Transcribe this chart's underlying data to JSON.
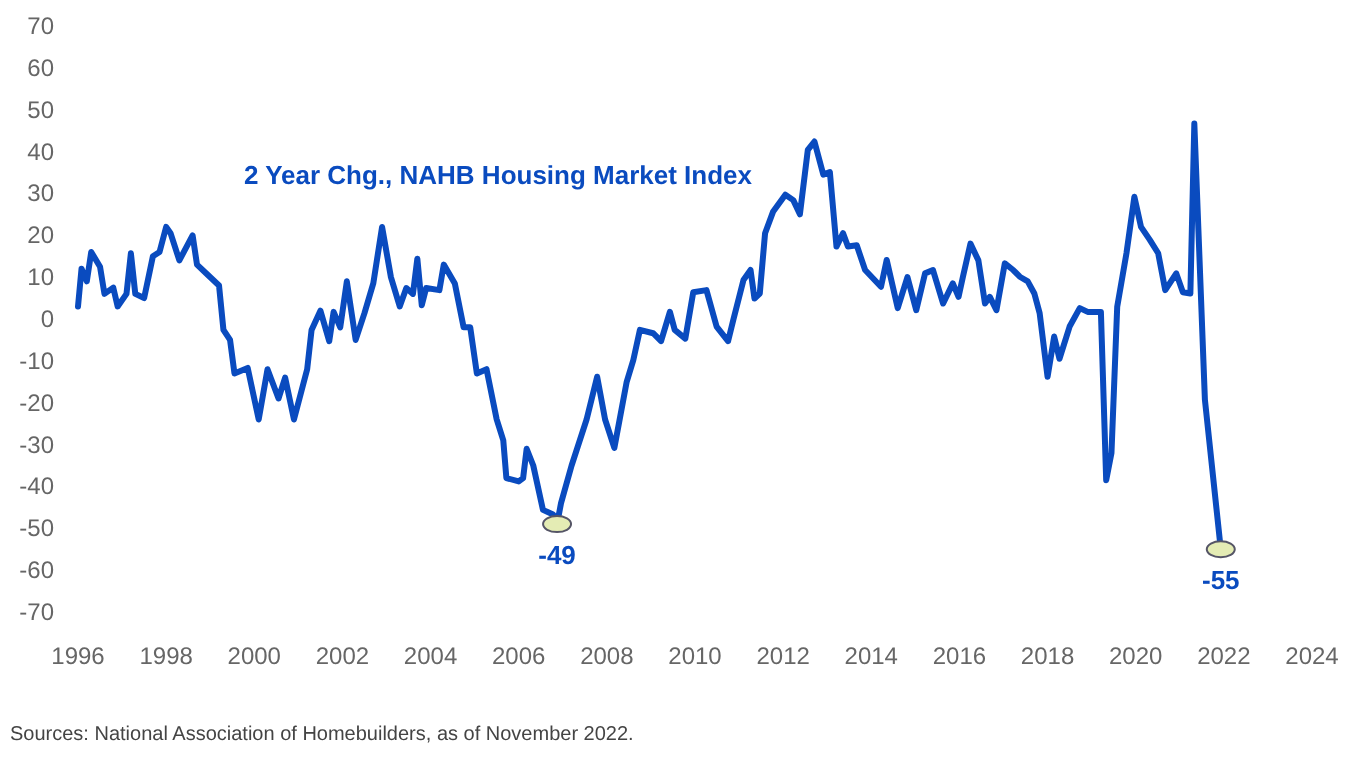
{
  "chart_data": {
    "type": "line",
    "title": "2 Year Chg., NAHB Housing Market Index",
    "xlim": [
      1996,
      2024
    ],
    "ylim": [
      -70,
      70
    ],
    "xticks": [
      1996,
      1998,
      2000,
      2002,
      2004,
      2006,
      2008,
      2010,
      2012,
      2014,
      2016,
      2018,
      2020,
      2022,
      2024
    ],
    "yticks": [
      -70,
      -60,
      -50,
      -40,
      -30,
      -20,
      -10,
      0,
      10,
      20,
      30,
      40,
      50,
      60,
      70
    ],
    "grid": false,
    "marker": "none",
    "line_style": "solid",
    "series": [
      {
        "color": "#0a4bbf",
        "x": [
          1996.0,
          1996.08,
          1996.2,
          1996.3,
          1996.5,
          1996.6,
          1996.8,
          1996.9,
          1997.1,
          1997.2,
          1997.3,
          1997.5,
          1997.7,
          1997.85,
          1998.0,
          1998.1,
          1998.3,
          1998.6,
          1998.7,
          1998.9,
          1999.2,
          1999.3,
          1999.45,
          1999.55,
          1999.85,
          2000.1,
          2000.3,
          2000.55,
          2000.7,
          2000.9,
          2001.2,
          2001.3,
          2001.5,
          2001.7,
          2001.8,
          2001.95,
          2002.1,
          2002.3,
          2002.5,
          2002.7,
          2002.9,
          2003.1,
          2003.3,
          2003.45,
          2003.6,
          2003.7,
          2003.8,
          2003.9,
          2004.2,
          2004.3,
          2004.55,
          2004.75,
          2004.9,
          2005.05,
          2005.27,
          2005.5,
          2005.65,
          2005.72,
          2006.0,
          2006.1,
          2006.18,
          2006.33,
          2006.55,
          2006.78,
          2006.87,
          2006.96,
          2007.2,
          2007.54,
          2007.78,
          2007.96,
          2008.17,
          2008.45,
          2008.6,
          2008.75,
          2009.05,
          2009.23,
          2009.43,
          2009.54,
          2009.78,
          2009.96,
          2010.26,
          2010.49,
          2010.75,
          2010.87,
          2011.1,
          2011.26,
          2011.35,
          2011.47,
          2011.59,
          2011.77,
          2012.05,
          2012.23,
          2012.38,
          2012.56,
          2012.71,
          2012.91,
          2013.06,
          2013.21,
          2013.36,
          2013.47,
          2013.67,
          2013.86,
          2014.22,
          2014.35,
          2014.6,
          2014.82,
          2015.02,
          2015.22,
          2015.4,
          2015.63,
          2015.85,
          2015.98,
          2016.08,
          2016.25,
          2016.43,
          2016.58,
          2016.69,
          2016.84,
          2017.03,
          2017.22,
          2017.37,
          2017.55,
          2017.7,
          2017.82,
          2018.0,
          2018.15,
          2018.27,
          2018.5,
          2018.73,
          2018.91,
          2019.21,
          2019.33,
          2019.45,
          2019.58,
          2019.79,
          2019.97,
          2020.12,
          2020.32,
          2020.51,
          2020.67,
          2020.92,
          2021.07,
          2021.24,
          2021.33,
          2021.57,
          2021.93
        ],
        "values": [
          3,
          12,
          9,
          16,
          12.5,
          6,
          7.5,
          3,
          6,
          15.7,
          6,
          5,
          15,
          16,
          22,
          20.5,
          14,
          20,
          13,
          11,
          8,
          -2.6,
          -5,
          -13,
          -11.7,
          -24,
          -12,
          -19,
          -14,
          -24,
          -12,
          -2.6,
          2,
          -5.3,
          1.7,
          -2,
          9,
          -5,
          1.4,
          8.5,
          22,
          10,
          3,
          7.4,
          6,
          14.4,
          3.3,
          7.4,
          6.9,
          13,
          8.5,
          -2,
          -2,
          -13,
          -12,
          -24,
          -29,
          -38,
          -38.8,
          -38,
          -31,
          -35,
          -45.6,
          -46.7,
          -49,
          -44,
          -35,
          -24,
          -13.8,
          -24,
          -30.8,
          -15,
          -9.8,
          -2.6,
          -3.4,
          -5.3,
          1.7,
          -2.6,
          -4.7,
          6.4,
          6.9,
          -1.8,
          -5.3,
          -0.2,
          9.3,
          11.7,
          4.9,
          6.1,
          20.5,
          25.6,
          29.7,
          28.4,
          25,
          40.4,
          42.4,
          34.5,
          35.1,
          17.3,
          20.5,
          17.3,
          17.6,
          11.7,
          7.7,
          14.1,
          2.6,
          10,
          2.1,
          10.9,
          11.7,
          3.7,
          8.5,
          5.3,
          10.1,
          18,
          14,
          3.7,
          5.3,
          2.1,
          13.3,
          11.7,
          10.1,
          9,
          6.1,
          1.4,
          -13.8,
          -4.2,
          -9.5,
          -1.8,
          2.6,
          1.7,
          1.7,
          -38.5,
          -32,
          2.9,
          15.7,
          29.2,
          22,
          18.9,
          15.7,
          6.9,
          10.9,
          6.4,
          6.1,
          46.7,
          -19.3,
          -55
        ]
      }
    ],
    "annotations": [
      {
        "text": "-49",
        "x": 2006.87,
        "y": -49
      },
      {
        "text": "-55",
        "x": 2021.93,
        "y": -55
      },
      "Sources: National Association of Homebuilders, as of November 2022."
    ]
  }
}
